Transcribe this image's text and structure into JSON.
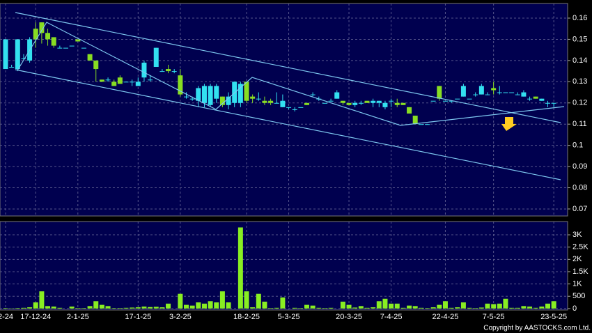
{
  "chart_data": [
    {
      "type": "candlestick",
      "categories": [
        "2-24",
        null,
        null,
        null,
        null,
        "17-12-24",
        null,
        null,
        null,
        null,
        null,
        null,
        "2-1-25",
        null,
        null,
        null,
        null,
        null,
        null,
        null,
        null,
        null,
        "17-1-25",
        null,
        null,
        null,
        null,
        null,
        null,
        "3-2-25",
        null,
        null,
        null,
        null,
        null,
        null,
        null,
        null,
        null,
        null,
        "18-2-25",
        null,
        null,
        null,
        null,
        null,
        null,
        "5-3-25",
        null,
        null,
        null,
        null,
        null,
        null,
        null,
        null,
        null,
        "20-3-25",
        null,
        null,
        null,
        null,
        null,
        null,
        "7-4-25",
        null,
        null,
        null,
        null,
        null,
        null,
        null,
        null,
        "22-4-25",
        null,
        null,
        null,
        null,
        null,
        null,
        null,
        "7-5-25",
        null,
        null,
        null,
        null,
        null,
        null,
        null,
        null,
        null,
        "23-5-25"
      ],
      "open": [
        0.136,
        0.137,
        0.136,
        0.141,
        0.14,
        0.155,
        0.158,
        0.153,
        0.151,
        0.146,
        0.146,
        0.147,
        0.15,
        0.146,
        0.143,
        0.14,
        0.131,
        0.131,
        0.13,
        0.132,
        0.13,
        0.13,
        0.128,
        0.132,
        0.131,
        0.137,
        0.135,
        0.136,
        0.135,
        0.133,
        0.123,
        0.122,
        0.121,
        0.12,
        0.119,
        0.122,
        0.123,
        0.119,
        0.12,
        0.12,
        0.13,
        0.123,
        0.122,
        0.121,
        0.121,
        0.12,
        0.118,
        0.118,
        0.117,
        0.118,
        0.12,
        0.124,
        0.122,
        0.12,
        0.121,
        0.122,
        0.121,
        0.12,
        0.119,
        0.12,
        0.121,
        0.12,
        0.12,
        0.118,
        0.121,
        0.12,
        0.12,
        0.118,
        0.114,
        0.11,
        0.11,
        0.121,
        0.128,
        0.121,
        0.121,
        0.122,
        0.123,
        0.122,
        0.124,
        0.124,
        0.124,
        0.127,
        0.125,
        0.125,
        0.125,
        0.124,
        0.123,
        0.122,
        0.123,
        0.121,
        0.12,
        0.12
      ],
      "high": [
        0.15,
        0.138,
        0.15,
        0.143,
        0.151,
        0.158,
        0.158,
        0.155,
        0.151,
        0.147,
        0.146,
        0.147,
        0.15,
        0.146,
        0.143,
        0.14,
        0.131,
        0.132,
        0.131,
        0.133,
        0.13,
        0.131,
        0.132,
        0.14,
        0.133,
        0.146,
        0.136,
        0.138,
        0.136,
        0.136,
        0.125,
        0.123,
        0.128,
        0.129,
        0.129,
        0.129,
        0.123,
        0.125,
        0.13,
        0.13,
        0.13,
        0.124,
        0.125,
        0.123,
        0.122,
        0.125,
        0.124,
        0.118,
        0.118,
        0.118,
        0.12,
        0.125,
        0.123,
        0.12,
        0.122,
        0.126,
        0.121,
        0.12,
        0.121,
        0.121,
        0.121,
        0.122,
        0.121,
        0.121,
        0.122,
        0.122,
        0.12,
        0.118,
        0.114,
        0.11,
        0.11,
        0.121,
        0.128,
        0.121,
        0.121,
        0.122,
        0.129,
        0.122,
        0.125,
        0.129,
        0.125,
        0.13,
        0.128,
        0.125,
        0.125,
        0.125,
        0.126,
        0.123,
        0.123,
        0.122,
        0.121,
        0.12
      ],
      "low": [
        0.136,
        0.137,
        0.135,
        0.14,
        0.139,
        0.146,
        0.148,
        0.147,
        0.146,
        0.146,
        0.146,
        0.147,
        0.149,
        0.146,
        0.14,
        0.13,
        0.13,
        0.13,
        0.128,
        0.129,
        0.13,
        0.128,
        0.128,
        0.13,
        0.13,
        0.137,
        0.135,
        0.134,
        0.134,
        0.123,
        0.122,
        0.121,
        0.118,
        0.118,
        0.118,
        0.12,
        0.118,
        0.117,
        0.118,
        0.118,
        0.12,
        0.12,
        0.121,
        0.119,
        0.119,
        0.12,
        0.118,
        0.117,
        0.116,
        0.118,
        0.119,
        0.123,
        0.121,
        0.12,
        0.121,
        0.122,
        0.119,
        0.119,
        0.118,
        0.119,
        0.12,
        0.118,
        0.118,
        0.117,
        0.118,
        0.118,
        0.119,
        0.115,
        0.11,
        0.11,
        0.11,
        0.121,
        0.121,
        0.121,
        0.12,
        0.122,
        0.123,
        0.122,
        0.123,
        0.124,
        0.124,
        0.124,
        0.124,
        0.125,
        0.125,
        0.124,
        0.123,
        0.121,
        0.122,
        0.121,
        0.118,
        0.118
      ],
      "close": [
        0.15,
        0.137,
        0.15,
        0.141,
        0.15,
        0.15,
        0.153,
        0.15,
        0.147,
        0.146,
        0.146,
        0.147,
        0.149,
        0.146,
        0.14,
        0.136,
        0.13,
        0.131,
        0.128,
        0.129,
        0.13,
        0.13,
        0.13,
        0.139,
        0.131,
        0.146,
        0.135,
        0.135,
        0.135,
        0.124,
        0.123,
        0.122,
        0.127,
        0.128,
        0.128,
        0.128,
        0.119,
        0.123,
        0.13,
        0.129,
        0.121,
        0.122,
        0.122,
        0.12,
        0.12,
        0.12,
        0.121,
        0.118,
        0.117,
        0.118,
        0.119,
        0.124,
        0.122,
        0.12,
        0.121,
        0.125,
        0.12,
        0.119,
        0.12,
        0.12,
        0.12,
        0.121,
        0.121,
        0.12,
        0.121,
        0.119,
        0.119,
        0.115,
        0.11,
        0.11,
        0.11,
        0.121,
        0.122,
        0.121,
        0.121,
        0.122,
        0.128,
        0.122,
        0.124,
        0.128,
        0.124,
        0.126,
        0.125,
        0.125,
        0.125,
        0.124,
        0.125,
        0.122,
        0.122,
        0.122,
        0.12,
        0.12
      ],
      "up_color": "#33e0f0",
      "down_color": "#88dd22",
      "ylim": [
        0.0667,
        0.1669
      ],
      "yticks": [
        0.07,
        0.08,
        0.09,
        0.1,
        0.11,
        0.12,
        0.13,
        0.14,
        0.15,
        0.16
      ],
      "grid": true
    },
    {
      "type": "bar",
      "values": [
        20,
        10,
        20,
        30,
        50,
        250,
        700,
        100,
        80,
        30,
        0,
        80,
        20,
        20,
        100,
        300,
        150,
        100,
        20,
        20,
        30,
        40,
        50,
        80,
        60,
        70,
        50,
        200,
        0,
        600,
        150,
        120,
        250,
        200,
        300,
        250,
        700,
        250,
        0,
        3300,
        700,
        50,
        600,
        280,
        20,
        30,
        450,
        0,
        30,
        20,
        150,
        120,
        30,
        20,
        30,
        0,
        280,
        150,
        40,
        100,
        30,
        50,
        300,
        400,
        200,
        200,
        30,
        120,
        100,
        30,
        20,
        50,
        150,
        300,
        30,
        50,
        250,
        30,
        20,
        40,
        200,
        180,
        200,
        400,
        30,
        30,
        100,
        80,
        30,
        80,
        200,
        300
      ],
      "color": "#88ee22",
      "ylim": [
        -60,
        3540
      ],
      "yticks": [
        0,
        500,
        {
          "value": 1000,
          "label": "1K"
        },
        {
          "value": 1500,
          "label": "1.5K"
        },
        {
          "value": 2000,
          "label": "2K"
        },
        {
          "value": 2500,
          "label": "2.5K"
        },
        {
          "value": 3000,
          "label": "3K"
        }
      ],
      "grid": true,
      "credit": "Copyright by AASTOCKS.com Ltd."
    }
  ]
}
